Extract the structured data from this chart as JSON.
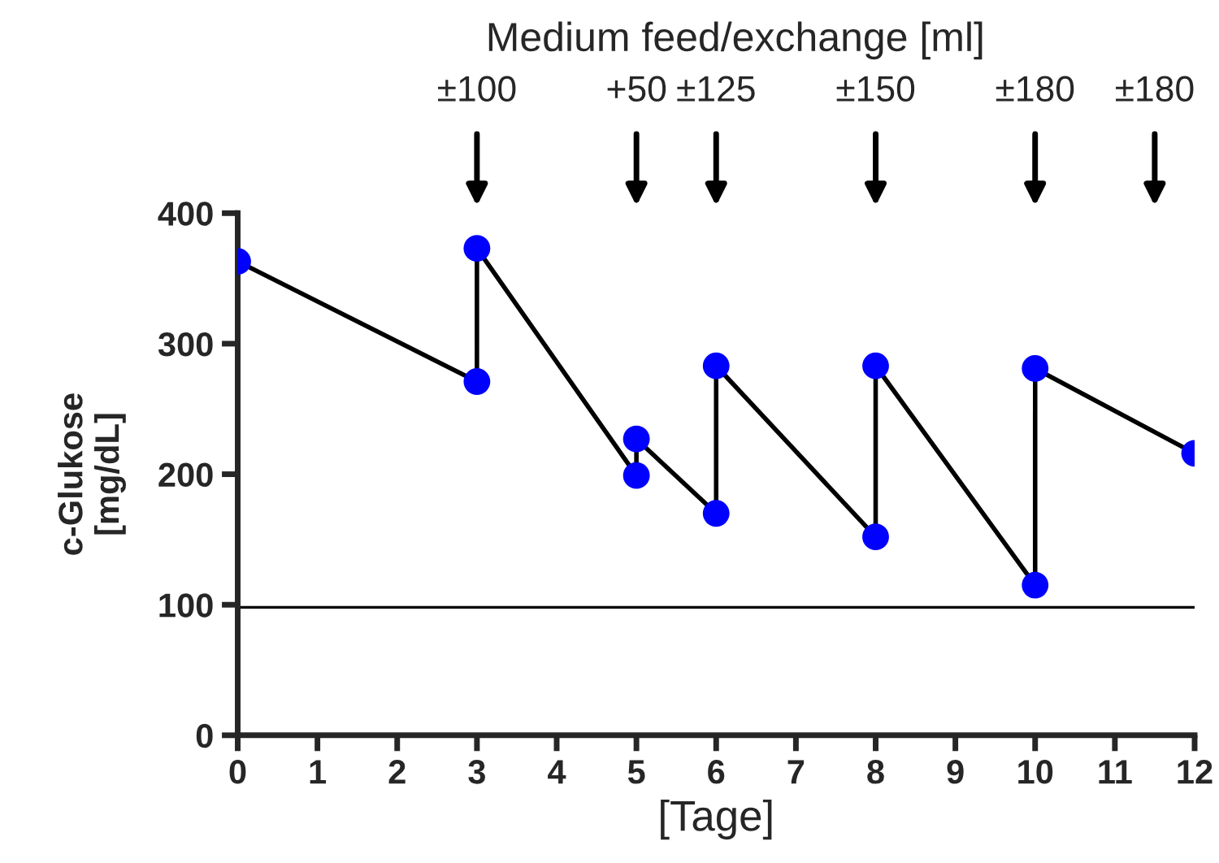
{
  "chart_data": {
    "type": "line",
    "title": "Medium feed/exchange [ml]",
    "xlabel": "[Tage]",
    "ylabel": "c-Glukose\n[mg/dL]",
    "x": [
      0,
      3,
      3,
      5,
      5,
      6,
      6,
      8,
      8,
      10,
      10,
      12
    ],
    "series": [
      {
        "color": "#0000ff",
        "values": [
          363,
          271,
          373,
          199,
          227,
          170,
          283,
          152,
          283,
          115,
          281,
          216
        ]
      }
    ],
    "marker": "circle",
    "line_style": "solid",
    "grid": false,
    "legend": false,
    "xlim": [
      0,
      12
    ],
    "xticks": [
      0,
      1,
      2,
      3,
      4,
      5,
      6,
      7,
      8,
      9,
      10,
      11,
      12
    ],
    "ylim": [
      0,
      400
    ],
    "yticks": [
      0,
      100,
      200,
      300,
      400
    ],
    "ref_lines": [
      {
        "axis": "y",
        "value": 98,
        "label": null,
        "color": "#000000"
      }
    ],
    "annotations": [
      "±100",
      "+50",
      "±125",
      "±150",
      "±180",
      "±180"
    ]
  }
}
